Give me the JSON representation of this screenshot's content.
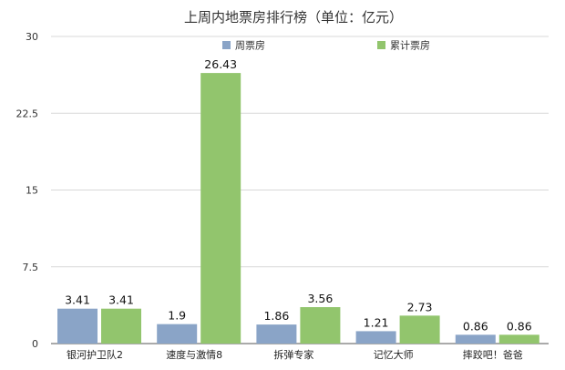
{
  "chart_data": {
    "type": "bar",
    "title": "上周内地票房排行榜（单位：亿元）",
    "xlabel": "",
    "ylabel": "",
    "categories": [
      "银河护卫队2",
      "速度与激情8",
      "拆弹专家",
      "记忆大师",
      "摔跤吧！爸爸"
    ],
    "series": [
      {
        "name": "周票房",
        "values": [
          3.41,
          1.9,
          1.86,
          1.21,
          0.86
        ],
        "color": "#8aa4c7"
      },
      {
        "name": "累计票房",
        "values": [
          3.41,
          26.43,
          3.56,
          2.73,
          0.86
        ],
        "color": "#92c56d"
      }
    ],
    "ylim": [
      0,
      30
    ],
    "yticks": [
      "0",
      "7.5",
      "15",
      "22.5",
      "30"
    ],
    "grid": true,
    "legend": "top-center"
  }
}
